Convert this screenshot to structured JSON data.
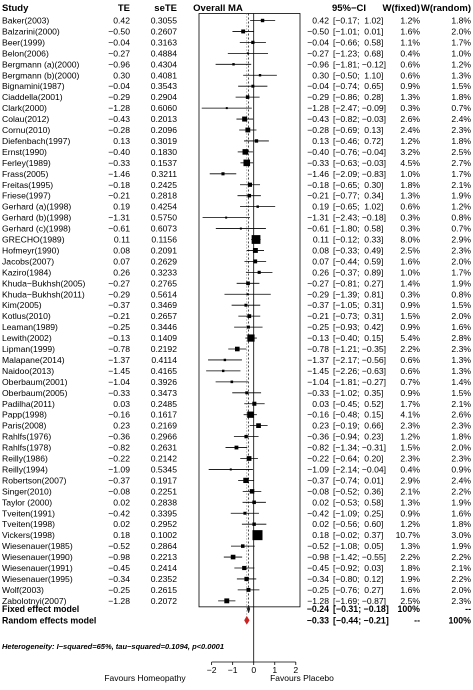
{
  "chart_data": {
    "type": "forest",
    "title": "Overall MA",
    "columns": {
      "study": "Study",
      "te": "TE",
      "sete": "seTE",
      "ci": "95%−CI",
      "w_fixed": "W(fixed)",
      "w_random": "W(random)"
    },
    "studies": [
      {
        "study": "Baker(2003)",
        "te": 0.42,
        "sete": 0.3055,
        "lo": -0.17,
        "hi": 1.02,
        "wf": "1.2%",
        "wr": "1.8%"
      },
      {
        "study": "Balzarini(2000)",
        "te": -0.5,
        "sete": 0.2607,
        "lo": -1.01,
        "hi": 0.01,
        "wf": "1.6%",
        "wr": "2.0%"
      },
      {
        "study": "Beer(1999)",
        "te": -0.04,
        "sete": 0.3163,
        "lo": -0.66,
        "hi": 0.58,
        "wf": "1.1%",
        "wr": "1.7%"
      },
      {
        "study": "Belon(2006)",
        "te": -0.27,
        "sete": 0.4884,
        "lo": -1.23,
        "hi": 0.68,
        "wf": "0.4%",
        "wr": "1.0%"
      },
      {
        "study": "Bergmann (a)(2000)",
        "te": -0.96,
        "sete": 0.4304,
        "lo": -1.81,
        "hi": -0.12,
        "wf": "0.6%",
        "wr": "1.2%"
      },
      {
        "study": "Bergmann (b)(2000)",
        "te": 0.3,
        "sete": 0.4081,
        "lo": -0.5,
        "hi": 1.1,
        "wf": "0.6%",
        "wr": "1.3%"
      },
      {
        "study": "Bignamini(1987)",
        "te": -0.04,
        "sete": 0.3543,
        "lo": -0.74,
        "hi": 0.65,
        "wf": "0.9%",
        "wr": "1.5%"
      },
      {
        "study": "Ciaddella(2001)",
        "te": -0.29,
        "sete": 0.2904,
        "lo": -0.86,
        "hi": 0.28,
        "wf": "1.3%",
        "wr": "1.8%"
      },
      {
        "study": "Clark(2000)",
        "te": -1.28,
        "sete": 0.606,
        "lo": -2.47,
        "hi": -0.09,
        "wf": "0.3%",
        "wr": "0.7%"
      },
      {
        "study": "Colau(2012)",
        "te": -0.43,
        "sete": 0.2013,
        "lo": -0.82,
        "hi": -0.03,
        "wf": "2.6%",
        "wr": "2.4%"
      },
      {
        "study": "Cornu(2010)",
        "te": -0.28,
        "sete": 0.2096,
        "lo": -0.69,
        "hi": 0.13,
        "wf": "2.4%",
        "wr": "2.3%"
      },
      {
        "study": "Diefenbach(1997)",
        "te": 0.13,
        "sete": 0.3019,
        "lo": -0.46,
        "hi": 0.72,
        "wf": "1.2%",
        "wr": "1.8%"
      },
      {
        "study": "Ernst(1990)",
        "te": -0.4,
        "sete": 0.183,
        "lo": -0.76,
        "hi": -0.04,
        "wf": "3.2%",
        "wr": "2.5%"
      },
      {
        "study": "Ferley(1989)",
        "te": -0.33,
        "sete": 0.1537,
        "lo": -0.63,
        "hi": -0.03,
        "wf": "4.5%",
        "wr": "2.7%"
      },
      {
        "study": "Frass(2005)",
        "te": -1.46,
        "sete": 0.3211,
        "lo": -2.09,
        "hi": -0.83,
        "wf": "1.0%",
        "wr": "1.7%"
      },
      {
        "study": "Freitas(1995)",
        "te": -0.18,
        "sete": 0.2425,
        "lo": -0.65,
        "hi": 0.3,
        "wf": "1.8%",
        "wr": "2.1%"
      },
      {
        "study": "Friese(1997)",
        "te": -0.21,
        "sete": 0.2818,
        "lo": -0.77,
        "hi": 0.34,
        "wf": "1.3%",
        "wr": "1.9%"
      },
      {
        "study": "Gerhard (a)(1998)",
        "te": 0.19,
        "sete": 0.4254,
        "lo": -0.65,
        "hi": 1.02,
        "wf": "0.6%",
        "wr": "1.2%"
      },
      {
        "study": "Gerhard (b)(1998)",
        "te": -1.31,
        "sete": 0.575,
        "lo": -2.43,
        "hi": -0.18,
        "wf": "0.3%",
        "wr": "0.8%"
      },
      {
        "study": "Gerhard (c)(1998)",
        "te": -0.61,
        "sete": 0.6073,
        "lo": -1.8,
        "hi": 0.58,
        "wf": "0.3%",
        "wr": "0.7%"
      },
      {
        "study": "GRECHO(1989)",
        "te": 0.11,
        "sete": 0.1156,
        "lo": -0.12,
        "hi": 0.33,
        "wf": "8.0%",
        "wr": "2.9%"
      },
      {
        "study": "Hofmeyr(1990)",
        "te": 0.08,
        "sete": 0.2091,
        "lo": -0.33,
        "hi": 0.49,
        "wf": "2.5%",
        "wr": "2.3%"
      },
      {
        "study": "Jacobs(2007)",
        "te": 0.07,
        "sete": 0.2629,
        "lo": -0.44,
        "hi": 0.59,
        "wf": "1.6%",
        "wr": "2.0%"
      },
      {
        "study": "Kaziro(1984)",
        "te": 0.26,
        "sete": 0.3233,
        "lo": -0.37,
        "hi": 0.89,
        "wf": "1.0%",
        "wr": "1.7%"
      },
      {
        "study": "Khuda−Bukhsh(2005)",
        "te": -0.27,
        "sete": 0.2765,
        "lo": -0.81,
        "hi": 0.27,
        "wf": "1.4%",
        "wr": "1.9%"
      },
      {
        "study": "Khuda−Bukhsh(2011)",
        "te": -0.29,
        "sete": 0.5614,
        "lo": -1.39,
        "hi": 0.81,
        "wf": "0.3%",
        "wr": "0.8%"
      },
      {
        "study": "Kim(2005)",
        "te": -0.37,
        "sete": 0.3469,
        "lo": -1.05,
        "hi": 0.31,
        "wf": "0.9%",
        "wr": "1.5%"
      },
      {
        "study": "Kotlus(2010)",
        "te": -0.21,
        "sete": 0.2657,
        "lo": -0.73,
        "hi": 0.31,
        "wf": "1.5%",
        "wr": "2.0%"
      },
      {
        "study": "Leaman(1989)",
        "te": -0.25,
        "sete": 0.3446,
        "lo": -0.93,
        "hi": 0.42,
        "wf": "0.9%",
        "wr": "1.6%"
      },
      {
        "study": "Lewith(2002)",
        "te": -0.13,
        "sete": 0.1409,
        "lo": -0.4,
        "hi": 0.15,
        "wf": "5.4%",
        "wr": "2.8%"
      },
      {
        "study": "Lipman(1999)",
        "te": -0.78,
        "sete": 0.2192,
        "lo": -1.21,
        "hi": -0.35,
        "wf": "2.2%",
        "wr": "2.3%"
      },
      {
        "study": "Malapane(2014)",
        "te": -1.37,
        "sete": 0.4114,
        "lo": -2.17,
        "hi": -0.56,
        "wf": "0.6%",
        "wr": "1.3%"
      },
      {
        "study": "Naidoo(2013)",
        "te": -1.45,
        "sete": 0.4165,
        "lo": -2.26,
        "hi": -0.63,
        "wf": "0.6%",
        "wr": "1.3%"
      },
      {
        "study": "Oberbaum(2001)",
        "te": -1.04,
        "sete": 0.3926,
        "lo": -1.81,
        "hi": -0.27,
        "wf": "0.7%",
        "wr": "1.4%"
      },
      {
        "study": "Oberbaum(2005)",
        "te": -0.33,
        "sete": 0.3473,
        "lo": -1.02,
        "hi": 0.35,
        "wf": "0.9%",
        "wr": "1.5%"
      },
      {
        "study": "Padilha(2011)",
        "te": 0.03,
        "sete": 0.2485,
        "lo": -0.45,
        "hi": 0.52,
        "wf": "1.7%",
        "wr": "2.1%"
      },
      {
        "study": "Papp(1998)",
        "te": -0.16,
        "sete": 0.1617,
        "lo": -0.48,
        "hi": 0.15,
        "wf": "4.1%",
        "wr": "2.6%"
      },
      {
        "study": "Paris(2008)",
        "te": 0.23,
        "sete": 0.2169,
        "lo": -0.19,
        "hi": 0.66,
        "wf": "2.3%",
        "wr": "2.3%"
      },
      {
        "study": "Rahlfs(1976)",
        "te": -0.36,
        "sete": 0.2966,
        "lo": -0.94,
        "hi": 0.23,
        "wf": "1.2%",
        "wr": "1.8%"
      },
      {
        "study": "Rahlfs(1978)",
        "te": -0.82,
        "sete": 0.2631,
        "lo": -1.34,
        "hi": -0.31,
        "wf": "1.5%",
        "wr": "2.0%"
      },
      {
        "study": "Reilly(1986)",
        "te": -0.22,
        "sete": 0.2142,
        "lo": -0.64,
        "hi": 0.2,
        "wf": "2.3%",
        "wr": "2.3%"
      },
      {
        "study": "Reilly(1994)",
        "te": -1.09,
        "sete": 0.5345,
        "lo": -2.14,
        "hi": -0.04,
        "wf": "0.4%",
        "wr": "0.9%"
      },
      {
        "study": "Robertson(2007)",
        "te": -0.37,
        "sete": 0.1917,
        "lo": -0.74,
        "hi": 0.01,
        "wf": "2.9%",
        "wr": "2.4%"
      },
      {
        "study": "Singer(2010)",
        "te": -0.08,
        "sete": 0.2251,
        "lo": -0.52,
        "hi": 0.36,
        "wf": "2.1%",
        "wr": "2.2%"
      },
      {
        "study": "Taylor (2000)",
        "te": 0.02,
        "sete": 0.2838,
        "lo": -0.53,
        "hi": 0.58,
        "wf": "1.3%",
        "wr": "1.9%"
      },
      {
        "study": "Tveiten(1991)",
        "te": -0.42,
        "sete": 0.3395,
        "lo": -1.09,
        "hi": 0.25,
        "wf": "0.9%",
        "wr": "1.6%"
      },
      {
        "study": "Tveiten(1998)",
        "te": 0.02,
        "sete": 0.2952,
        "lo": -0.56,
        "hi": 0.6,
        "wf": "1.2%",
        "wr": "1.8%"
      },
      {
        "study": "Vickers(1998)",
        "te": 0.18,
        "sete": 0.1002,
        "lo": -0.02,
        "hi": 0.37,
        "wf": "10.7%",
        "wr": "3.0%"
      },
      {
        "study": "Wiesenauer(1985)",
        "te": -0.52,
        "sete": 0.2864,
        "lo": -1.08,
        "hi": 0.05,
        "wf": "1.3%",
        "wr": "1.9%"
      },
      {
        "study": "Wiesenauer(1990)",
        "te": -0.98,
        "sete": 0.2213,
        "lo": -1.42,
        "hi": -0.55,
        "wf": "2.2%",
        "wr": "2.2%"
      },
      {
        "study": "Wiesenauer(1991)",
        "te": -0.45,
        "sete": 0.2414,
        "lo": -0.92,
        "hi": 0.03,
        "wf": "1.8%",
        "wr": "2.1%"
      },
      {
        "study": "Wiesenauer(1995)",
        "te": -0.34,
        "sete": 0.2352,
        "lo": -0.8,
        "hi": 0.12,
        "wf": "1.9%",
        "wr": "2.2%"
      },
      {
        "study": "Wolf(2003)",
        "te": -0.25,
        "sete": 0.2615,
        "lo": -0.76,
        "hi": 0.27,
        "wf": "1.6%",
        "wr": "2.0%"
      },
      {
        "study": "Zabolotnyi(2007)",
        "te": -1.28,
        "sete": 0.2072,
        "lo": -1.69,
        "hi": -0.87,
        "wf": "2.5%",
        "wr": "2.3%"
      }
    ],
    "pooled": [
      {
        "label": "Fixed effect model",
        "te": -0.24,
        "lo": -0.31,
        "hi": -0.18,
        "wf": "100%",
        "wr": "--"
      },
      {
        "label": "Random effects model",
        "te": -0.33,
        "lo": -0.44,
        "hi": -0.21,
        "wf": "--",
        "wr": "100%"
      }
    ],
    "heterogeneity": "Heterogeneity: I−squared=65%, tau−squared=0.1094, p<0.0001",
    "x_ticks": [
      -2,
      -1,
      0,
      1,
      2
    ],
    "x_tick_labels": [
      "−2",
      "−1",
      "0",
      "1",
      "2"
    ],
    "xlim": [
      -2.6,
      2.2
    ],
    "xlabel_left": "Favours Homeopathy",
    "xlabel_right": "Favours Placebo",
    "colors": {
      "marker": "#000000",
      "random_diamond": "#cc2222"
    }
  }
}
